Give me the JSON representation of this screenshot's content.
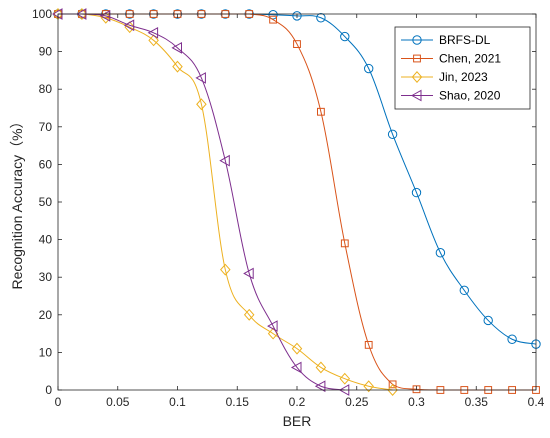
{
  "chart_data": {
    "type": "line",
    "xlabel": "BER",
    "ylabel": "Recognition Accuracy（%）",
    "xlim": [
      0,
      0.4
    ],
    "ylim": [
      0,
      100
    ],
    "xticks": [
      0,
      0.05,
      0.1,
      0.15,
      0.2,
      0.25,
      0.3,
      0.35,
      0.4
    ],
    "xtick_labels": [
      "0",
      "0.05",
      "0.1",
      "0.15",
      "0.2",
      "0.25",
      "0.3",
      "0.35",
      "0.4"
    ],
    "yticks": [
      0,
      10,
      20,
      30,
      40,
      50,
      60,
      70,
      80,
      90,
      100
    ],
    "ytick_labels": [
      "0",
      "10",
      "20",
      "30",
      "40",
      "50",
      "60",
      "70",
      "80",
      "90",
      "100"
    ],
    "grid": false,
    "legend_position": "top-right",
    "series": [
      {
        "name": "BRFS-DL",
        "color": "#0072BD",
        "marker": "circle",
        "x": [
          0,
          0.02,
          0.04,
          0.06,
          0.08,
          0.1,
          0.12,
          0.14,
          0.16,
          0.18,
          0.2,
          0.22,
          0.24,
          0.26,
          0.28,
          0.3,
          0.32,
          0.34,
          0.36,
          0.38,
          0.4
        ],
        "y": [
          100,
          100,
          100,
          100,
          100,
          100,
          100,
          100,
          100,
          99.8,
          99.5,
          99,
          94,
          85.5,
          68,
          52.5,
          36.5,
          26.5,
          18.5,
          13.5,
          12.2
        ]
      },
      {
        "name": "Chen, 2021",
        "color": "#D95319",
        "marker": "square",
        "x": [
          0,
          0.02,
          0.04,
          0.06,
          0.08,
          0.1,
          0.12,
          0.14,
          0.16,
          0.18,
          0.2,
          0.22,
          0.24,
          0.26,
          0.28,
          0.3,
          0.32,
          0.34,
          0.36,
          0.38,
          0.4
        ],
        "y": [
          100,
          100,
          100,
          100,
          100,
          100,
          100,
          100,
          100,
          98.5,
          92,
          74,
          39,
          12,
          1.5,
          0.2,
          0,
          0,
          0,
          0,
          0
        ]
      },
      {
        "name": "Jin, 2023",
        "color": "#EDB120",
        "marker": "diamond",
        "x": [
          0,
          0.02,
          0.04,
          0.06,
          0.08,
          0.1,
          0.12,
          0.14,
          0.16,
          0.18,
          0.2,
          0.22,
          0.24,
          0.26,
          0.28
        ],
        "y": [
          100,
          100,
          99,
          96.5,
          93,
          86,
          76,
          32,
          20,
          15,
          11,
          6,
          3,
          1,
          0
        ]
      },
      {
        "name": "Shao, 2020",
        "color": "#7E2F8E",
        "marker": "triangle-left",
        "x": [
          0,
          0.02,
          0.04,
          0.06,
          0.08,
          0.1,
          0.12,
          0.14,
          0.16,
          0.18,
          0.2,
          0.22,
          0.24
        ],
        "y": [
          100,
          100,
          99.5,
          97,
          95,
          91,
          83,
          61,
          31,
          17,
          6,
          1,
          0
        ]
      }
    ]
  }
}
